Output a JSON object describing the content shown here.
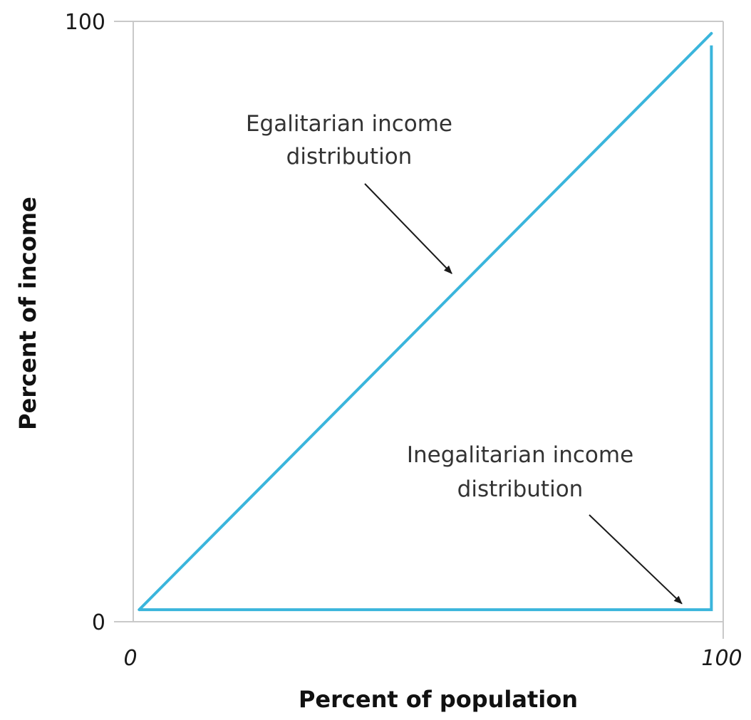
{
  "chart_data": {
    "type": "line",
    "title": "",
    "xlabel": "Percent of population",
    "ylabel": "Percent of income",
    "xlim": [
      0,
      100
    ],
    "ylim": [
      0,
      100
    ],
    "x_ticks": [
      "0",
      "100"
    ],
    "y_ticks": [
      "0",
      "100"
    ],
    "grid": false,
    "series": [
      {
        "color": "#3ab5dc",
        "points": [
          [
            1,
            2
          ],
          [
            98,
            98
          ]
        ]
      },
      {
        "color": "#3ab5dc",
        "points": [
          [
            1,
            2
          ],
          [
            98,
            2
          ],
          [
            98,
            96
          ]
        ]
      }
    ],
    "annotations": [
      {
        "lines": [
          "Egalitarian income",
          "distribution"
        ],
        "target": [
          54,
          58
        ]
      },
      {
        "lines": [
          "Inegalitarian income",
          "distribution"
        ],
        "target": [
          93,
          3
        ]
      }
    ]
  }
}
